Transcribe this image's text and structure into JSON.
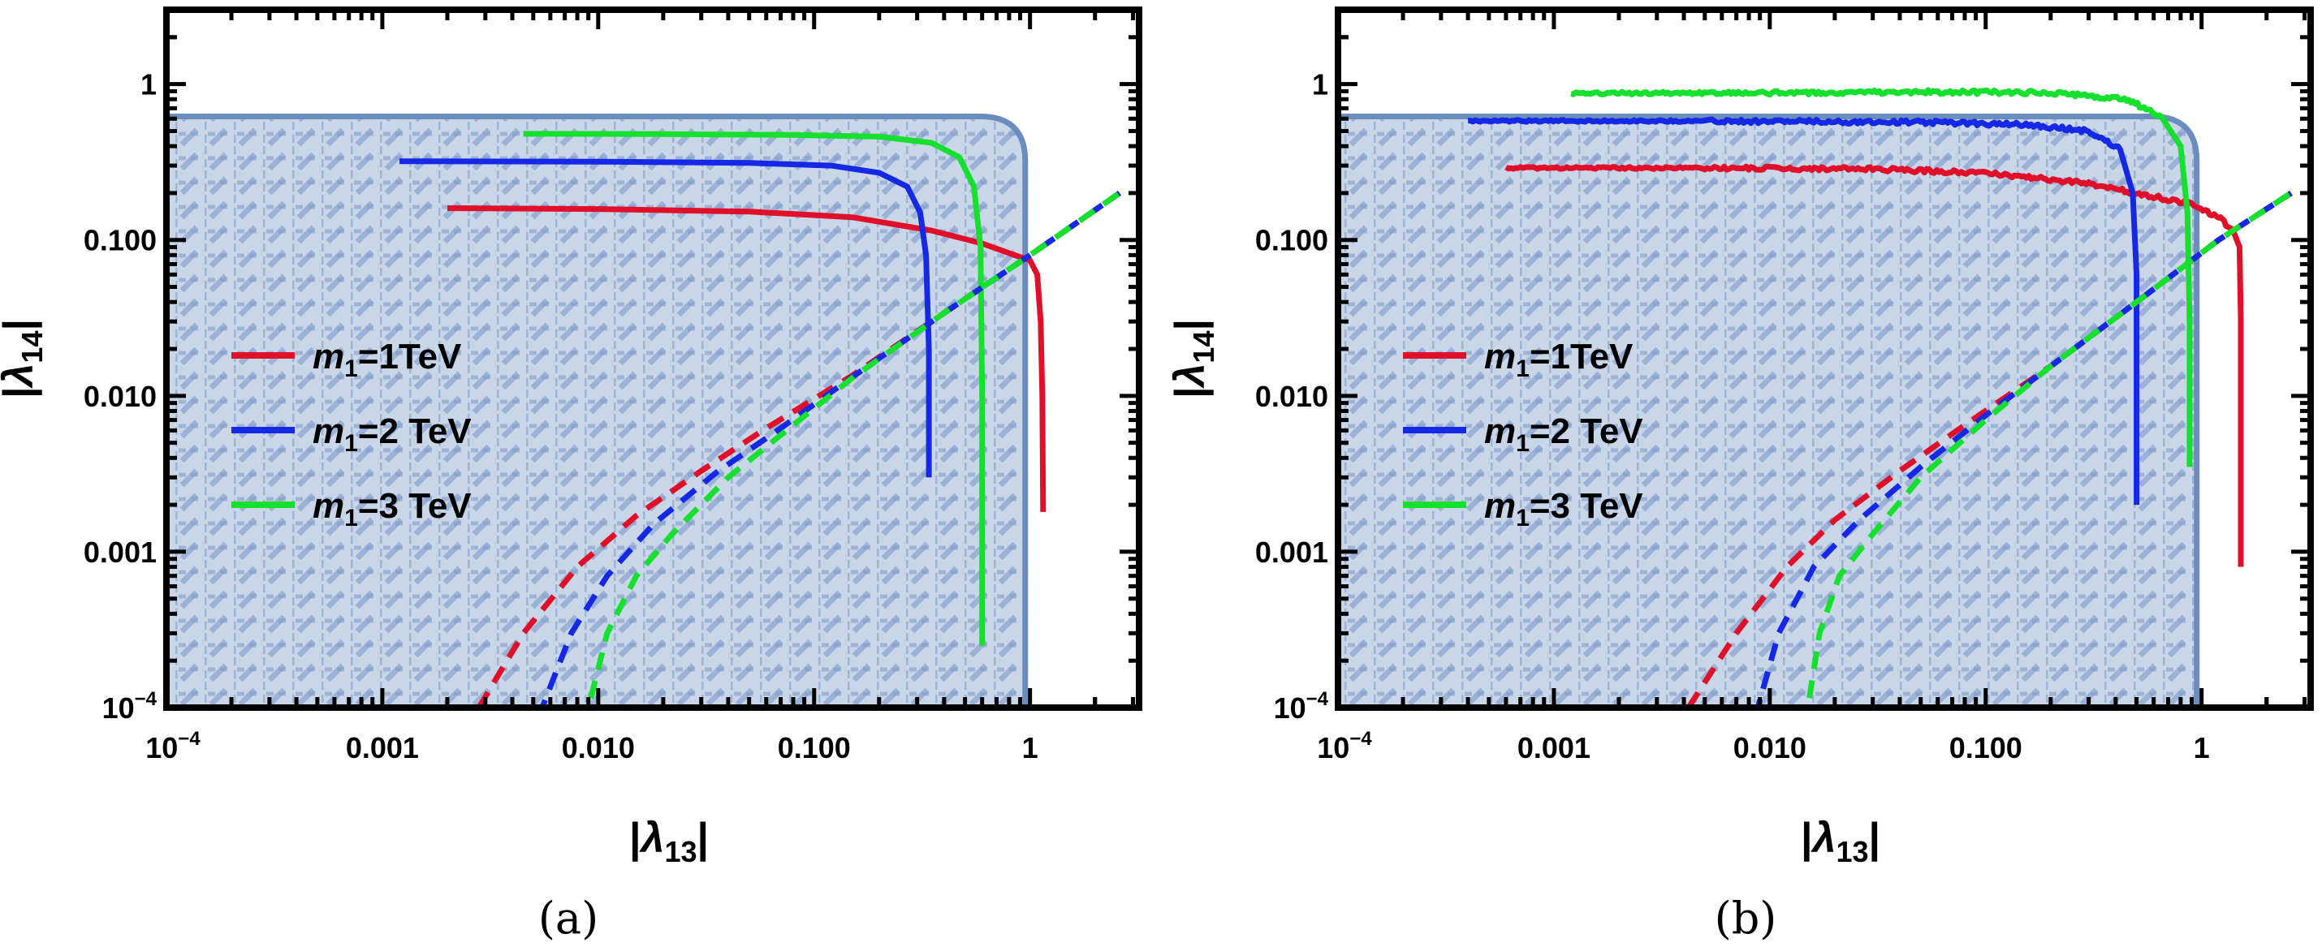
{
  "figure": {
    "captions": [
      "(a)",
      "(b)"
    ]
  },
  "colors": {
    "region_fill": "#c9d6e8",
    "region_edge": "#6b8cbf",
    "red": "#e0102a",
    "blue": "#1428e6",
    "green": "#16e02e",
    "frame": "#000000"
  },
  "chart_data": [
    {
      "type": "line",
      "panel": "(a)",
      "xlabel": "|λ13|",
      "ylabel": "|λ14|",
      "xscale": "log",
      "yscale": "log",
      "xlim": [
        0.0001,
        3.2
      ],
      "ylim": [
        0.0001,
        3.0
      ],
      "xticks": [
        {
          "v": 0.0001,
          "label": "10^-4"
        },
        {
          "v": 0.001,
          "label": "0.001"
        },
        {
          "v": 0.01,
          "label": "0.010"
        },
        {
          "v": 0.1,
          "label": "0.100"
        },
        {
          "v": 1,
          "label": "1"
        }
      ],
      "yticks": [
        {
          "v": 0.0001,
          "label": "10^-4"
        },
        {
          "v": 0.001,
          "label": "0.001"
        },
        {
          "v": 0.01,
          "label": "0.010"
        },
        {
          "v": 0.1,
          "label": "0.100"
        },
        {
          "v": 1,
          "label": "1"
        }
      ],
      "grid": false,
      "legend": {
        "placement": "center-left",
        "entries": [
          {
            "name": "m1=1TeV",
            "mass": "1",
            "unit": "TeV",
            "color": "red"
          },
          {
            "name": "m1=2 TeV",
            "mass": "2",
            "unit": " TeV",
            "color": "blue"
          },
          {
            "name": "m1=3 TeV",
            "mass": "3",
            "unit": " TeV",
            "color": "green"
          }
        ]
      },
      "shaded_region": {
        "description": "hatched excluded region",
        "x_max": 0.95,
        "y_max": 0.62,
        "corner": "rounded"
      },
      "series": [
        {
          "name": "m1=1TeV",
          "color": "red",
          "style": "solid",
          "points": [
            [
              0.002,
              0.16
            ],
            [
              0.01,
              0.158
            ],
            [
              0.05,
              0.152
            ],
            [
              0.15,
              0.14
            ],
            [
              0.35,
              0.115
            ],
            [
              0.6,
              0.095
            ],
            [
              0.85,
              0.08
            ],
            [
              1.0,
              0.074
            ],
            [
              1.08,
              0.06
            ],
            [
              1.12,
              0.03
            ],
            [
              1.14,
              0.01
            ],
            [
              1.15,
              0.0018
            ]
          ]
        },
        {
          "name": "m1=2 TeV",
          "color": "blue",
          "style": "solid",
          "points": [
            [
              0.0012,
              0.32
            ],
            [
              0.01,
              0.318
            ],
            [
              0.05,
              0.312
            ],
            [
              0.12,
              0.3
            ],
            [
              0.2,
              0.27
            ],
            [
              0.27,
              0.22
            ],
            [
              0.31,
              0.15
            ],
            [
              0.33,
              0.08
            ],
            [
              0.34,
              0.02
            ],
            [
              0.34,
              0.003
            ]
          ]
        },
        {
          "name": "m1=3 TeV",
          "color": "green",
          "style": "solid",
          "points": [
            [
              0.0045,
              0.48
            ],
            [
              0.02,
              0.478
            ],
            [
              0.08,
              0.472
            ],
            [
              0.2,
              0.46
            ],
            [
              0.35,
              0.42
            ],
            [
              0.47,
              0.34
            ],
            [
              0.55,
              0.22
            ],
            [
              0.59,
              0.09
            ],
            [
              0.6,
              0.01
            ],
            [
              0.6,
              0.00025
            ]
          ]
        },
        {
          "name": "m1=1TeV dashed",
          "color": "red",
          "style": "dashed",
          "points": [
            [
              0.0028,
              0.0001
            ],
            [
              0.0045,
              0.0003
            ],
            [
              0.008,
              0.0008
            ],
            [
              0.015,
              0.0017
            ],
            [
              0.03,
              0.0033
            ],
            [
              0.06,
              0.0062
            ],
            [
              0.15,
              0.0135
            ],
            [
              0.4,
              0.034
            ],
            [
              1.0,
              0.08
            ],
            [
              2.6,
              0.2
            ]
          ]
        },
        {
          "name": "m1=2 TeV dashed",
          "color": "blue",
          "style": "dashed",
          "points": [
            [
              0.0055,
              0.0001
            ],
            [
              0.0075,
              0.0003
            ],
            [
              0.011,
              0.0007
            ],
            [
              0.018,
              0.0015
            ],
            [
              0.035,
              0.0032
            ],
            [
              0.07,
              0.0062
            ],
            [
              0.15,
              0.0132
            ],
            [
              0.4,
              0.034
            ],
            [
              1.0,
              0.08
            ],
            [
              2.6,
              0.2
            ]
          ]
        },
        {
          "name": "m1=3 TeV dashed",
          "color": "green",
          "style": "dashed",
          "points": [
            [
              0.009,
              0.0001
            ],
            [
              0.011,
              0.0003
            ],
            [
              0.015,
              0.0007
            ],
            [
              0.022,
              0.0013
            ],
            [
              0.04,
              0.003
            ],
            [
              0.08,
              0.0065
            ],
            [
              0.15,
              0.013
            ],
            [
              0.4,
              0.034
            ],
            [
              1.0,
              0.08
            ],
            [
              2.6,
              0.2
            ]
          ]
        }
      ]
    },
    {
      "type": "line",
      "panel": "(b)",
      "xlabel": "|λ13|",
      "ylabel": "|λ14|",
      "xscale": "log",
      "yscale": "log",
      "xlim": [
        0.0001,
        3.2
      ],
      "ylim": [
        0.0001,
        3.0
      ],
      "xticks": [
        {
          "v": 0.0001,
          "label": "10^-4"
        },
        {
          "v": 0.001,
          "label": "0.001"
        },
        {
          "v": 0.01,
          "label": "0.010"
        },
        {
          "v": 0.1,
          "label": "0.100"
        },
        {
          "v": 1,
          "label": "1"
        }
      ],
      "yticks": [
        {
          "v": 0.0001,
          "label": "10^-4"
        },
        {
          "v": 0.001,
          "label": "0.001"
        },
        {
          "v": 0.01,
          "label": "0.010"
        },
        {
          "v": 0.1,
          "label": "0.100"
        },
        {
          "v": 1,
          "label": "1"
        }
      ],
      "grid": false,
      "legend": {
        "placement": "center-left",
        "entries": [
          {
            "name": "m1=1TeV",
            "mass": "1",
            "unit": "TeV",
            "color": "red"
          },
          {
            "name": "m1=2 TeV",
            "mass": "2",
            "unit": " TeV",
            "color": "blue"
          },
          {
            "name": "m1=3 TeV",
            "mass": "3",
            "unit": " TeV",
            "color": "green"
          }
        ]
      },
      "shaded_region": {
        "description": "hatched excluded region",
        "x_max": 0.95,
        "y_max": 0.62,
        "corner": "rounded"
      },
      "series": [
        {
          "name": "m1=1TeV",
          "color": "red",
          "style": "solid",
          "noisy": true,
          "points": [
            [
              0.0006,
              0.29
            ],
            [
              0.005,
              0.29
            ],
            [
              0.03,
              0.285
            ],
            [
              0.1,
              0.27
            ],
            [
              0.3,
              0.23
            ],
            [
              0.6,
              0.19
            ],
            [
              0.9,
              0.17
            ],
            [
              1.2,
              0.14
            ],
            [
              1.4,
              0.115
            ],
            [
              1.5,
              0.09
            ],
            [
              1.52,
              0.03
            ],
            [
              1.52,
              0.0008
            ]
          ]
        },
        {
          "name": "m1=2 TeV",
          "color": "blue",
          "style": "solid",
          "noisy": true,
          "points": [
            [
              0.0004,
              0.58
            ],
            [
              0.005,
              0.58
            ],
            [
              0.05,
              0.57
            ],
            [
              0.15,
              0.55
            ],
            [
              0.3,
              0.5
            ],
            [
              0.42,
              0.38
            ],
            [
              0.48,
              0.2
            ],
            [
              0.5,
              0.06
            ],
            [
              0.5,
              0.002
            ]
          ]
        },
        {
          "name": "m1=3 TeV",
          "color": "green",
          "style": "solid",
          "noisy": true,
          "points": [
            [
              0.0012,
              0.87
            ],
            [
              0.01,
              0.88
            ],
            [
              0.05,
              0.89
            ],
            [
              0.2,
              0.88
            ],
            [
              0.45,
              0.8
            ],
            [
              0.65,
              0.62
            ],
            [
              0.8,
              0.4
            ],
            [
              0.86,
              0.15
            ],
            [
              0.88,
              0.03
            ],
            [
              0.88,
              0.0035
            ]
          ]
        },
        {
          "name": "m1=1TeV dashed",
          "color": "red",
          "style": "dashed",
          "points": [
            [
              0.0042,
              0.0001
            ],
            [
              0.007,
              0.0003
            ],
            [
              0.012,
              0.0008
            ],
            [
              0.02,
              0.0016
            ],
            [
              0.04,
              0.0033
            ],
            [
              0.08,
              0.0065
            ],
            [
              0.2,
              0.0155
            ],
            [
              0.5,
              0.04
            ],
            [
              1.2,
              0.1
            ],
            [
              2.6,
              0.2
            ]
          ]
        },
        {
          "name": "m1=2 TeV dashed",
          "color": "blue",
          "style": "dashed",
          "points": [
            [
              0.0088,
              0.0001
            ],
            [
              0.011,
              0.0003
            ],
            [
              0.016,
              0.0008
            ],
            [
              0.026,
              0.0016
            ],
            [
              0.05,
              0.0035
            ],
            [
              0.1,
              0.0075
            ],
            [
              0.2,
              0.0155
            ],
            [
              0.5,
              0.04
            ],
            [
              1.2,
              0.1
            ],
            [
              2.6,
              0.2
            ]
          ]
        },
        {
          "name": "m1=3 TeV dashed",
          "color": "green",
          "style": "dashed",
          "points": [
            [
              0.015,
              0.0001
            ],
            [
              0.017,
              0.0003
            ],
            [
              0.021,
              0.0007
            ],
            [
              0.03,
              0.0013
            ],
            [
              0.05,
              0.003
            ],
            [
              0.1,
              0.007
            ],
            [
              0.2,
              0.0155
            ],
            [
              0.5,
              0.04
            ],
            [
              1.2,
              0.1
            ],
            [
              2.6,
              0.2
            ]
          ]
        }
      ]
    }
  ]
}
